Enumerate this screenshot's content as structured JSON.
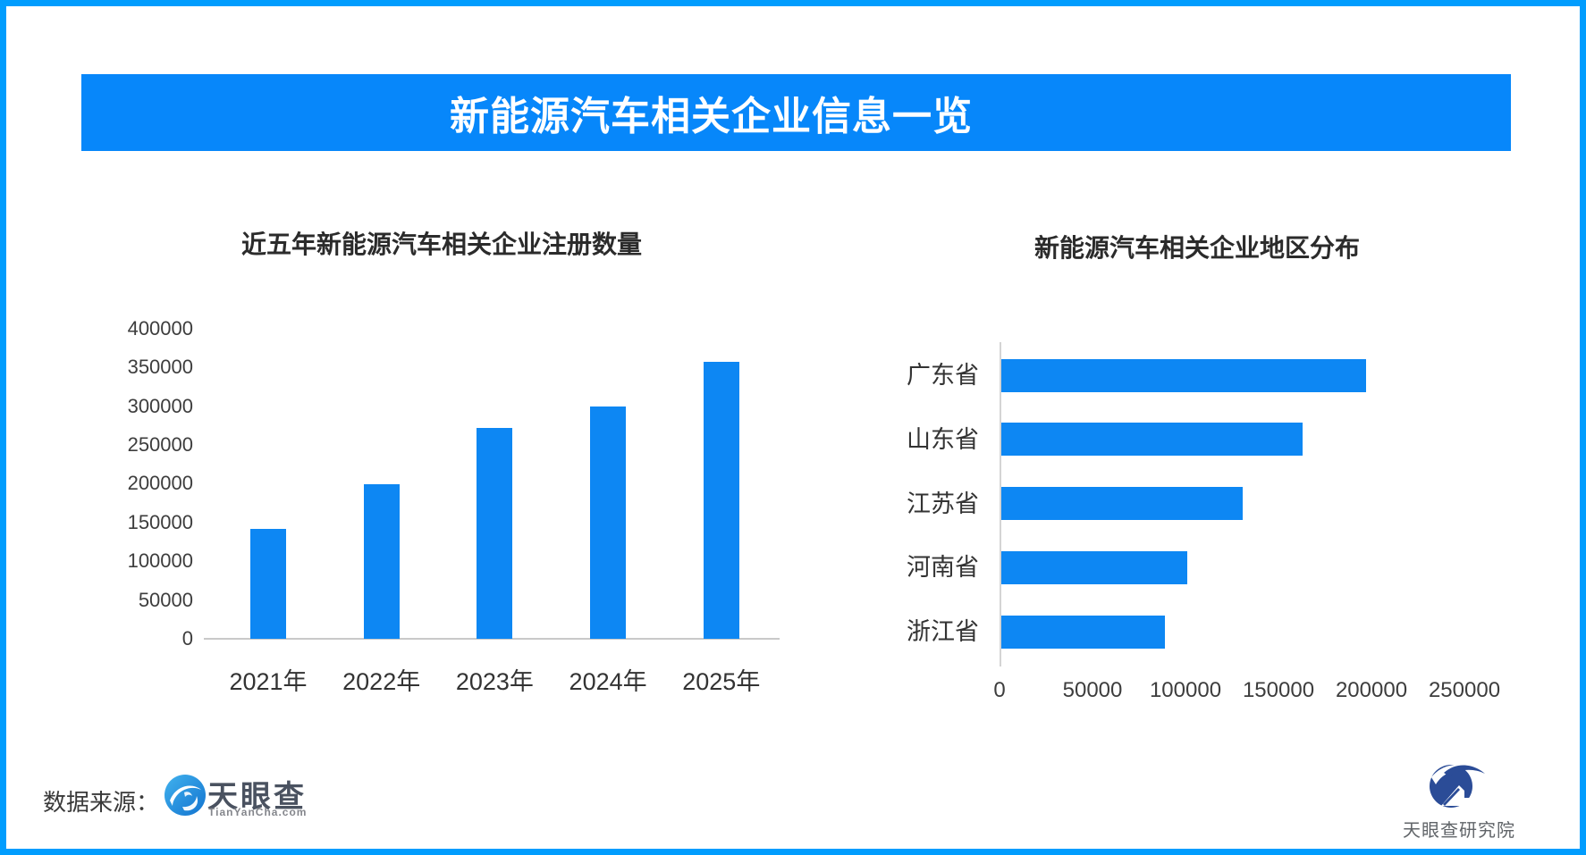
{
  "banner": {
    "title": "新能源汽车相关企业信息一览"
  },
  "chart_data": [
    {
      "type": "bar",
      "orientation": "vertical",
      "title": "近五年新能源汽车相关企业注册数量",
      "categories": [
        "2021年",
        "2022年",
        "2023年",
        "2024年",
        "2025年"
      ],
      "values": [
        142000,
        199000,
        272000,
        300000,
        357000
      ],
      "xlabel": "",
      "ylabel": "",
      "ylim": [
        0,
        400000
      ],
      "yticks": [
        0,
        50000,
        100000,
        150000,
        200000,
        250000,
        300000,
        350000,
        400000
      ],
      "grid": false,
      "legend": false,
      "bar_color": "#0d87f3"
    },
    {
      "type": "bar",
      "orientation": "horizontal",
      "title": "新能源汽车相关企业地区分布",
      "categories": [
        "广东省",
        "山东省",
        "江苏省",
        "河南省",
        "浙江省"
      ],
      "values": [
        196000,
        162000,
        130000,
        100000,
        88000
      ],
      "xlabel": "",
      "ylabel": "",
      "xlim": [
        0,
        250000
      ],
      "xticks": [
        0,
        50000,
        100000,
        150000,
        200000,
        250000
      ],
      "grid": false,
      "legend": false,
      "bar_color": "#0d87f3"
    }
  ],
  "footer": {
    "source_label": "数据来源：",
    "tianyancha_logo": {
      "name": "天眼查",
      "domain": "TianYanCha.com"
    },
    "institute_label": "天眼查研究院"
  },
  "colors": {
    "frame": "#019dfe",
    "banner": "#0787fa",
    "bar": "#0d87f3",
    "axis_line": "#c9c9c9",
    "axis_line_right": "#d4d4d4",
    "title_text": "#2b2b2b",
    "tick_text": "#3d3d3d",
    "label_text": "#333333",
    "tyc_logo_blue_light": "#41b2ee",
    "tyc_logo_blue_dark": "#1273cf",
    "institute_navy": "#2b4c97"
  },
  "icons": {
    "tianyancha_mark": "wave-circle-logo",
    "institute_mark": "research-swoosh-house-logo"
  }
}
